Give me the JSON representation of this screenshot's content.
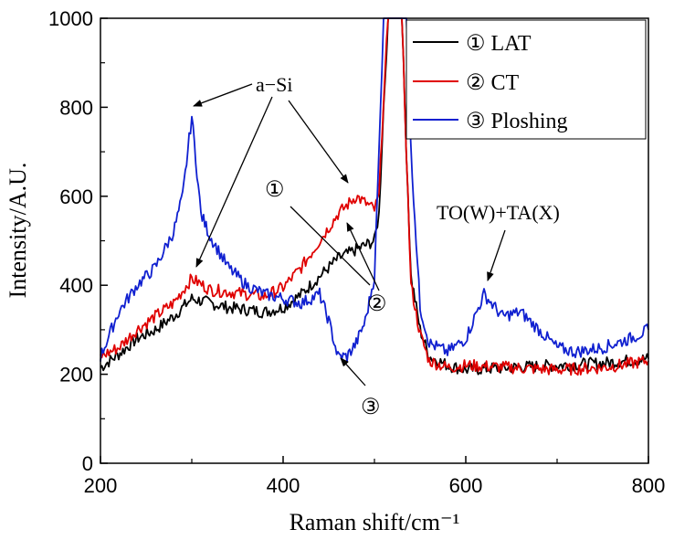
{
  "chart_data": {
    "type": "line",
    "title": "",
    "xlabel": "Raman shift/cm⁻¹",
    "ylabel": "Intensity/A.U.",
    "xlim": [
      200,
      800
    ],
    "ylim": [
      0,
      1000
    ],
    "xticks": [
      200,
      400,
      600,
      800
    ],
    "yticks": [
      0,
      200,
      400,
      600,
      800,
      1000
    ],
    "grid": false,
    "legend_position": "top-right",
    "series": [
      {
        "name": "① LAT",
        "color": "#000000",
        "x": [
          200,
          220,
          240,
          260,
          280,
          300,
          320,
          340,
          360,
          380,
          400,
          420,
          440,
          460,
          480,
          500,
          505,
          510,
          515,
          520,
          525,
          530,
          535,
          540,
          550,
          560,
          580,
          600,
          650,
          700,
          750,
          800
        ],
        "y": [
          215,
          245,
          280,
          300,
          330,
          370,
          360,
          350,
          345,
          340,
          350,
          380,
          420,
          460,
          480,
          500,
          560,
          800,
          1000,
          1000,
          1000,
          1000,
          700,
          420,
          300,
          240,
          220,
          210,
          215,
          220,
          225,
          235
        ]
      },
      {
        "name": "② CT",
        "color": "#e00000",
        "x": [
          200,
          220,
          240,
          260,
          280,
          300,
          320,
          340,
          360,
          380,
          400,
          420,
          440,
          460,
          480,
          500,
          505,
          510,
          515,
          520,
          525,
          530,
          535,
          540,
          550,
          560,
          580,
          600,
          650,
          700,
          750,
          800
        ],
        "y": [
          240,
          260,
          300,
          330,
          360,
          415,
          390,
          385,
          380,
          375,
          395,
          440,
          500,
          560,
          600,
          570,
          600,
          820,
          1000,
          1000,
          1000,
          1000,
          700,
          400,
          290,
          230,
          215,
          220,
          215,
          210,
          215,
          230
        ]
      },
      {
        "name": "③ Ploshing",
        "color": "#1020d0",
        "x": [
          200,
          220,
          240,
          260,
          280,
          290,
          300,
          310,
          320,
          340,
          360,
          380,
          400,
          420,
          440,
          450,
          460,
          470,
          480,
          490,
          500,
          505,
          510,
          515,
          520,
          525,
          530,
          535,
          540,
          550,
          560,
          580,
          600,
          620,
          640,
          660,
          680,
          700,
          720,
          750,
          780,
          800
        ],
        "y": [
          240,
          340,
          400,
          440,
          520,
          600,
          780,
          560,
          510,
          440,
          400,
          380,
          370,
          360,
          380,
          320,
          240,
          240,
          270,
          320,
          420,
          700,
          1000,
          1000,
          1000,
          1000,
          1000,
          1000,
          700,
          350,
          270,
          250,
          280,
          380,
          330,
          340,
          300,
          260,
          250,
          260,
          280,
          300
        ]
      }
    ],
    "annotations": [
      {
        "text": "a−Si"
      },
      {
        "text": "TO(W)+TA(X)"
      },
      {
        "text": "①"
      },
      {
        "text": "②"
      },
      {
        "text": "③"
      }
    ]
  }
}
